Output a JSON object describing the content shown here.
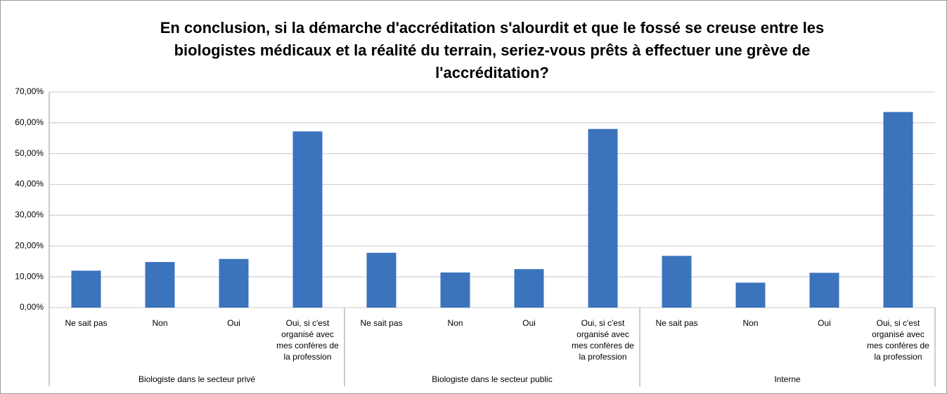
{
  "chart_data": {
    "type": "bar",
    "title": "En conclusion, si la démarche d'accréditation s'alourdit et que le fossé se creuse entre les biologistes médicaux et la réalité du terrain, seriez-vous prêts à effectuer une grève de l'accréditation?",
    "groups": [
      "Biologiste dans le secteur privé",
      "Biologiste dans le secteur public",
      "Interne"
    ],
    "categories": [
      "Ne sait pas",
      "Non",
      "Oui",
      "Oui, si c'est organisé avec mes confères de la profession",
      "Ne sait pas",
      "Non",
      "Oui",
      "Oui, si c'est organisé avec mes confères de la profession",
      "Ne sait pas",
      "Non",
      "Oui",
      "Oui, si c'est organisé avec mes confères de la profession"
    ],
    "values": [
      12,
      14.8,
      15.8,
      57.2,
      17.8,
      11.4,
      12.5,
      58,
      16.8,
      8.1,
      11.3,
      63.5
    ],
    "color": "#3b73bd",
    "ylim": [
      0,
      70
    ],
    "yticks": [
      {
        "value": 0,
        "label": "0,00%"
      },
      {
        "value": 10,
        "label": "10,00%"
      },
      {
        "value": 20,
        "label": "20,00%"
      },
      {
        "value": 30,
        "label": "30,00%"
      },
      {
        "value": 40,
        "label": "40,00%"
      },
      {
        "value": 50,
        "label": "50,00%"
      },
      {
        "value": 60,
        "label": "60,00%"
      },
      {
        "value": 70,
        "label": "70,00%"
      }
    ],
    "grid": true
  }
}
